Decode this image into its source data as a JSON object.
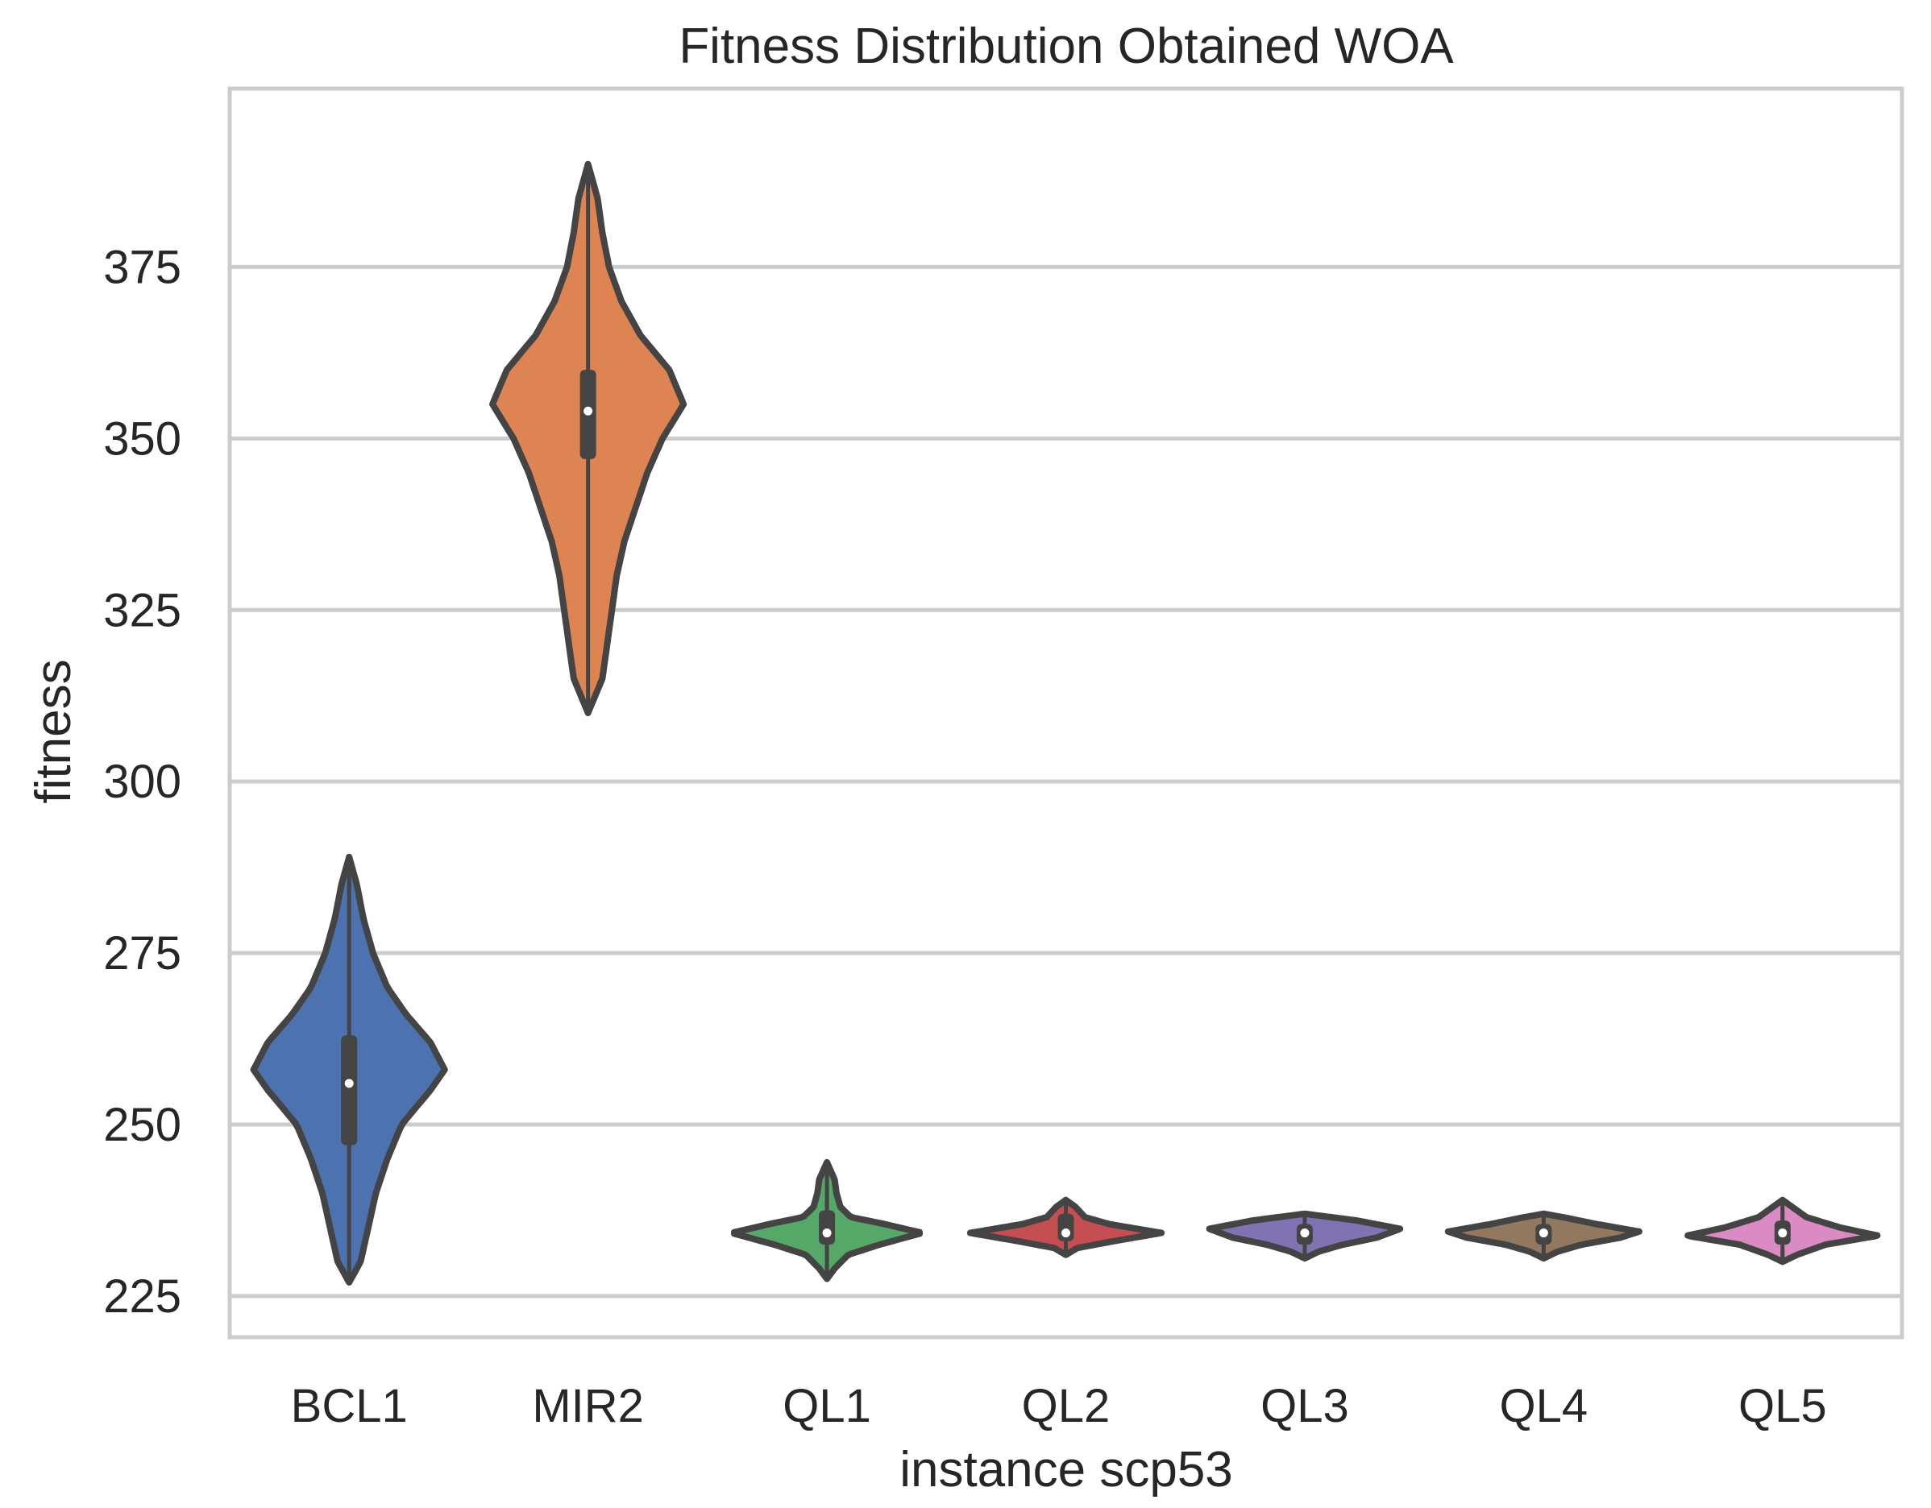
{
  "chart_data": {
    "type": "violin",
    "title": "Fitness Distribution Obtained WOA",
    "xlabel": "instance scp53",
    "ylabel": "fitness",
    "ylim": [
      219,
      401
    ],
    "yticks": [
      225,
      250,
      275,
      300,
      325,
      350,
      375
    ],
    "grid": "horizontal",
    "legend": "none",
    "categories": [
      "BCL1",
      "MIR2",
      "QL1",
      "QL2",
      "QL3",
      "QL4",
      "QL5"
    ],
    "series": [
      {
        "category": "BCL1",
        "color": "#4c72b0",
        "min": 227,
        "max": 289,
        "q1": 247,
        "q3": 263,
        "median": 256,
        "profile": [
          [
            227,
            0.0
          ],
          [
            230,
            0.12
          ],
          [
            235,
            0.2
          ],
          [
            240,
            0.28
          ],
          [
            245,
            0.4
          ],
          [
            250,
            0.55
          ],
          [
            255,
            0.85
          ],
          [
            258,
            1.0
          ],
          [
            262,
            0.85
          ],
          [
            266,
            0.6
          ],
          [
            270,
            0.4
          ],
          [
            275,
            0.25
          ],
          [
            280,
            0.15
          ],
          [
            285,
            0.08
          ],
          [
            289,
            0.0
          ]
        ]
      },
      {
        "category": "MIR2",
        "color": "#dd8452",
        "min": 310,
        "max": 390,
        "q1": 347,
        "q3": 360,
        "median": 354,
        "profile": [
          [
            310,
            0.0
          ],
          [
            315,
            0.15
          ],
          [
            320,
            0.2
          ],
          [
            325,
            0.25
          ],
          [
            330,
            0.3
          ],
          [
            335,
            0.38
          ],
          [
            340,
            0.5
          ],
          [
            345,
            0.62
          ],
          [
            350,
            0.78
          ],
          [
            355,
            1.0
          ],
          [
            360,
            0.85
          ],
          [
            365,
            0.55
          ],
          [
            370,
            0.35
          ],
          [
            375,
            0.22
          ],
          [
            380,
            0.15
          ],
          [
            385,
            0.1
          ],
          [
            390,
            0.0
          ]
        ]
      },
      {
        "category": "QL1",
        "color": "#55a868",
        "min": 227.5,
        "max": 244.5,
        "q1": 232.5,
        "q3": 237.5,
        "median": 234.2,
        "profile": [
          [
            227.5,
            0.0
          ],
          [
            229,
            0.08
          ],
          [
            231,
            0.22
          ],
          [
            232.5,
            0.55
          ],
          [
            234.2,
            1.0
          ],
          [
            235.5,
            0.6
          ],
          [
            236.5,
            0.25
          ],
          [
            238,
            0.14
          ],
          [
            240,
            0.1
          ],
          [
            242,
            0.08
          ],
          [
            244.5,
            0.0
          ]
        ]
      },
      {
        "category": "QL2",
        "color": "#c44e52",
        "min": 231,
        "max": 239,
        "q1": 233,
        "q3": 237,
        "median": 234.2,
        "profile": [
          [
            231,
            0.0
          ],
          [
            232,
            0.12
          ],
          [
            233,
            0.5
          ],
          [
            234.2,
            1.0
          ],
          [
            235.5,
            0.45
          ],
          [
            236.5,
            0.2
          ],
          [
            238,
            0.1
          ],
          [
            239,
            0.0
          ]
        ]
      },
      {
        "category": "QL3",
        "color": "#8172b3",
        "min": 230.5,
        "max": 237,
        "q1": 232.5,
        "q3": 235.5,
        "median": 234.2,
        "profile": [
          [
            230.5,
            0.0
          ],
          [
            231.5,
            0.15
          ],
          [
            232.5,
            0.4
          ],
          [
            233.5,
            0.75
          ],
          [
            234.8,
            1.0
          ],
          [
            236,
            0.55
          ],
          [
            237,
            0.0
          ]
        ]
      },
      {
        "category": "QL4",
        "color": "#937860",
        "min": 230.5,
        "max": 237,
        "q1": 232.5,
        "q3": 235.5,
        "median": 234.2,
        "profile": [
          [
            230.5,
            0.0
          ],
          [
            231.5,
            0.15
          ],
          [
            232.5,
            0.4
          ],
          [
            233.5,
            0.8
          ],
          [
            234.4,
            1.0
          ],
          [
            235.5,
            0.55
          ],
          [
            236.5,
            0.2
          ],
          [
            237,
            0.0
          ]
        ]
      },
      {
        "category": "QL5",
        "color": "#da8bc3",
        "min": 230,
        "max": 239,
        "q1": 232.5,
        "q3": 236,
        "median": 234.2,
        "profile": [
          [
            230,
            0.0
          ],
          [
            231,
            0.15
          ],
          [
            232.5,
            0.45
          ],
          [
            233.8,
            1.0
          ],
          [
            235,
            0.6
          ],
          [
            236.5,
            0.25
          ],
          [
            238,
            0.1
          ],
          [
            239,
            0.0
          ]
        ]
      }
    ]
  }
}
